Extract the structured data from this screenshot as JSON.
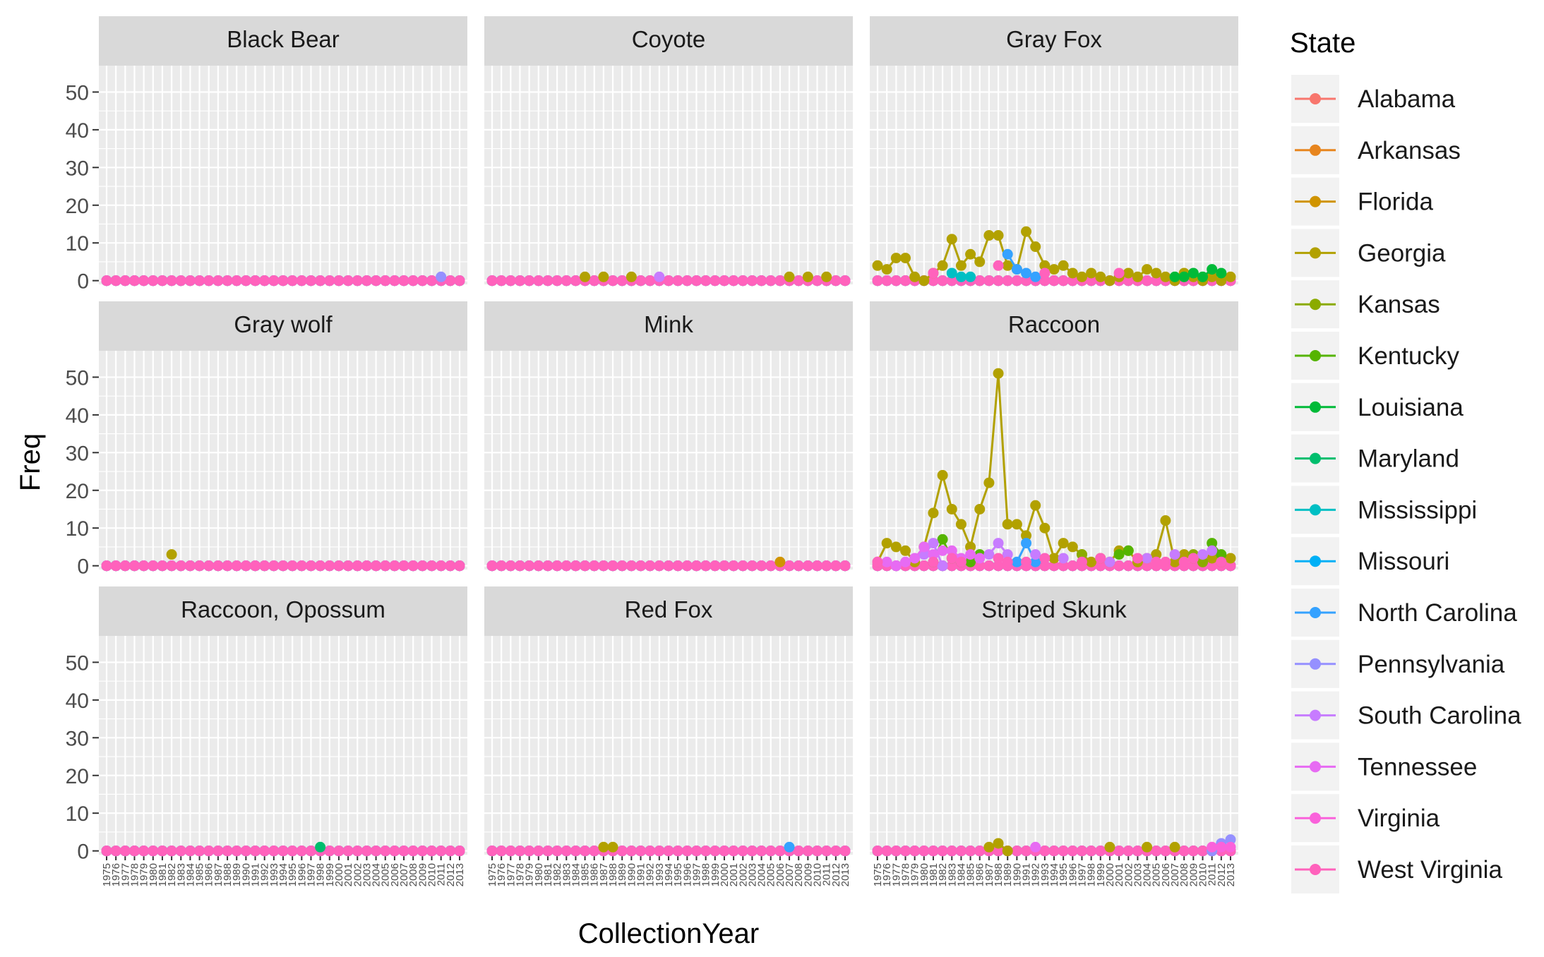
{
  "chart_data": {
    "type": "line",
    "facet_by": "species",
    "x_title": "CollectionYear",
    "y_title": "Freq",
    "legend_title": "State",
    "legend_position": "right",
    "grid": true,
    "ylim": [
      -1,
      57
    ],
    "y_ticks": [
      0,
      10,
      20,
      30,
      40,
      50
    ],
    "years": [
      1975,
      1976,
      1977,
      1978,
      1979,
      1980,
      1981,
      1982,
      1983,
      1984,
      1985,
      1986,
      1987,
      1988,
      1989,
      1990,
      1991,
      1992,
      1993,
      1994,
      1995,
      1996,
      1997,
      1998,
      1999,
      2000,
      2001,
      2002,
      2003,
      2004,
      2005,
      2006,
      2007,
      2008,
      2009,
      2010,
      2011,
      2012,
      2013
    ],
    "states": [
      {
        "name": "Alabama",
        "color": "#F8766D"
      },
      {
        "name": "Arkansas",
        "color": "#E7851E"
      },
      {
        "name": "Florida",
        "color": "#D09400"
      },
      {
        "name": "Georgia",
        "color": "#B2A100"
      },
      {
        "name": "Kansas",
        "color": "#8BAB00"
      },
      {
        "name": "Kentucky",
        "color": "#55B400"
      },
      {
        "name": "Louisiana",
        "color": "#00BA38"
      },
      {
        "name": "Maryland",
        "color": "#00BE6D"
      },
      {
        "name": "Mississippi",
        "color": "#00BFC4"
      },
      {
        "name": "Missouri",
        "color": "#00B0F6"
      },
      {
        "name": "North Carolina",
        "color": "#35A2FF"
      },
      {
        "name": "Pennsylvania",
        "color": "#9590FF"
      },
      {
        "name": "South Carolina",
        "color": "#C77CFF"
      },
      {
        "name": "Tennessee",
        "color": "#E76BF3"
      },
      {
        "name": "Virginia",
        "color": "#FA62DB"
      },
      {
        "name": "West Virginia",
        "color": "#FF62BC"
      }
    ],
    "panels": [
      {
        "species": "Black Bear",
        "series": [
          {
            "state": "Pennsylvania",
            "points": [
              [
                2011,
                1
              ]
            ]
          }
        ]
      },
      {
        "species": "Coyote",
        "series": [
          {
            "state": "Georgia",
            "points": [
              [
                1985,
                1
              ],
              [
                1987,
                1
              ],
              [
                1990,
                1
              ],
              [
                2007,
                1
              ],
              [
                2009,
                1
              ],
              [
                2011,
                1
              ]
            ]
          },
          {
            "state": "South Carolina",
            "points": [
              [
                1993,
                1
              ]
            ]
          }
        ]
      },
      {
        "species": "Gray Fox",
        "series": [
          {
            "state": "Georgia",
            "points": [
              [
                1975,
                4
              ],
              [
                1976,
                3
              ],
              [
                1977,
                6
              ],
              [
                1978,
                6
              ],
              [
                1979,
                1
              ],
              [
                1980,
                0
              ],
              [
                1981,
                2
              ],
              [
                1982,
                4
              ],
              [
                1983,
                11
              ],
              [
                1984,
                4
              ],
              [
                1985,
                7
              ],
              [
                1986,
                5
              ],
              [
                1987,
                12
              ],
              [
                1988,
                12
              ],
              [
                1989,
                4
              ],
              [
                1990,
                3
              ],
              [
                1991,
                13
              ],
              [
                1992,
                9
              ],
              [
                1993,
                4
              ],
              [
                1994,
                3
              ],
              [
                1995,
                4
              ],
              [
                1996,
                2
              ],
              [
                1997,
                1
              ],
              [
                1998,
                2
              ],
              [
                1999,
                1
              ],
              [
                2000,
                0
              ],
              [
                2001,
                1
              ],
              [
                2002,
                2
              ],
              [
                2003,
                1
              ],
              [
                2004,
                3
              ],
              [
                2005,
                2
              ],
              [
                2006,
                1
              ],
              [
                2007,
                0
              ],
              [
                2008,
                2
              ],
              [
                2009,
                1
              ],
              [
                2010,
                0
              ],
              [
                2011,
                1
              ],
              [
                2012,
                0
              ],
              [
                2013,
                1
              ]
            ]
          },
          {
            "state": "Louisiana",
            "points": [
              [
                2007,
                1
              ],
              [
                2008,
                1
              ],
              [
                2009,
                2
              ],
              [
                2010,
                1
              ],
              [
                2011,
                3
              ],
              [
                2012,
                2
              ]
            ]
          },
          {
            "state": "North Carolina",
            "points": [
              [
                1989,
                7
              ],
              [
                1990,
                3
              ],
              [
                1991,
                2
              ],
              [
                1992,
                1
              ]
            ]
          },
          {
            "state": "Mississippi",
            "points": [
              [
                1983,
                2
              ],
              [
                1984,
                1
              ],
              [
                1985,
                1
              ]
            ]
          },
          {
            "state": "West Virginia",
            "points": [
              [
                1981,
                2
              ],
              [
                1988,
                4
              ],
              [
                1993,
                2
              ],
              [
                2001,
                2
              ]
            ]
          }
        ]
      },
      {
        "species": "Gray wolf",
        "series": [
          {
            "state": "Georgia",
            "points": [
              [
                1982,
                3
              ]
            ]
          }
        ]
      },
      {
        "species": "Mink",
        "series": [
          {
            "state": "Florida",
            "points": [
              [
                2006,
                1
              ]
            ]
          }
        ]
      },
      {
        "species": "Raccoon",
        "series": [
          {
            "state": "Georgia",
            "points": [
              [
                1975,
                1
              ],
              [
                1976,
                6
              ],
              [
                1977,
                5
              ],
              [
                1978,
                4
              ],
              [
                1979,
                1
              ],
              [
                1980,
                5
              ],
              [
                1981,
                14
              ],
              [
                1982,
                24
              ],
              [
                1983,
                15
              ],
              [
                1984,
                11
              ],
              [
                1985,
                5
              ],
              [
                1986,
                15
              ],
              [
                1987,
                22
              ],
              [
                1988,
                51
              ],
              [
                1989,
                11
              ],
              [
                1990,
                11
              ],
              [
                1991,
                8
              ],
              [
                1992,
                16
              ],
              [
                1993,
                10
              ],
              [
                1994,
                2
              ],
              [
                1995,
                6
              ],
              [
                1996,
                5
              ],
              [
                1997,
                3
              ],
              [
                1998,
                1
              ],
              [
                1999,
                2
              ],
              [
                2000,
                1
              ],
              [
                2001,
                4
              ],
              [
                2002,
                4
              ],
              [
                2003,
                1
              ],
              [
                2004,
                2
              ],
              [
                2005,
                3
              ],
              [
                2006,
                12
              ],
              [
                2007,
                1
              ],
              [
                2008,
                3
              ],
              [
                2009,
                2
              ],
              [
                2010,
                1
              ],
              [
                2011,
                2
              ],
              [
                2012,
                1
              ],
              [
                2013,
                2
              ]
            ]
          },
          {
            "state": "Kentucky",
            "points": [
              [
                1981,
                1
              ],
              [
                1982,
                7
              ],
              [
                1983,
                2
              ],
              [
                1984,
                1
              ],
              [
                1985,
                1
              ],
              [
                1986,
                3
              ],
              [
                2001,
                3
              ],
              [
                2002,
                4
              ],
              [
                2011,
                6
              ],
              [
                2012,
                3
              ]
            ]
          },
          {
            "state": "North Carolina",
            "points": [
              [
                1990,
                1
              ],
              [
                1991,
                6
              ],
              [
                1992,
                1
              ]
            ]
          },
          {
            "state": "Kansas",
            "points": [
              [
                1997,
                3
              ],
              [
                2009,
                3
              ],
              [
                2010,
                1
              ]
            ]
          },
          {
            "state": "South Carolina",
            "points": [
              [
                1980,
                3
              ],
              [
                1981,
                6
              ],
              [
                1982,
                0
              ],
              [
                1987,
                3
              ],
              [
                1988,
                6
              ],
              [
                1989,
                3
              ],
              [
                1992,
                3
              ],
              [
                1995,
                2
              ],
              [
                2000,
                1
              ],
              [
                2004,
                2
              ],
              [
                2007,
                3
              ],
              [
                2010,
                3
              ],
              [
                2011,
                4
              ]
            ]
          },
          {
            "state": "Tennessee",
            "points": [
              [
                1975,
                1
              ],
              [
                1976,
                1
              ],
              [
                1977,
                0
              ],
              [
                1978,
                1
              ],
              [
                1979,
                2
              ],
              [
                1980,
                5
              ],
              [
                1981,
                3
              ],
              [
                1982,
                4
              ],
              [
                1983,
                4
              ],
              [
                1984,
                2
              ],
              [
                1985,
                3
              ],
              [
                1986,
                2
              ]
            ]
          },
          {
            "state": "West Virginia",
            "points": [
              [
                1975,
                1
              ],
              [
                1981,
                1
              ],
              [
                1983,
                2
              ],
              [
                1984,
                1
              ],
              [
                1988,
                2
              ],
              [
                1989,
                1
              ],
              [
                1991,
                1
              ],
              [
                1993,
                2
              ],
              [
                1997,
                1
              ],
              [
                1999,
                2
              ],
              [
                2003,
                2
              ],
              [
                2005,
                1
              ],
              [
                2006,
                1
              ],
              [
                2008,
                1
              ],
              [
                2009,
                2
              ],
              [
                2012,
                1
              ]
            ]
          }
        ]
      },
      {
        "species": "Raccoon, Opossum",
        "series": [
          {
            "state": "Maryland",
            "points": [
              [
                1998,
                1
              ]
            ]
          }
        ]
      },
      {
        "species": "Red Fox",
        "series": [
          {
            "state": "Georgia",
            "points": [
              [
                1987,
                1
              ],
              [
                1988,
                1
              ]
            ]
          },
          {
            "state": "North Carolina",
            "points": [
              [
                2007,
                1
              ]
            ]
          }
        ]
      },
      {
        "species": "Striped Skunk",
        "series": [
          {
            "state": "Georgia",
            "points": [
              [
                1987,
                1
              ],
              [
                1988,
                2
              ],
              [
                1989,
                0
              ],
              [
                2000,
                1
              ],
              [
                2004,
                1
              ],
              [
                2007,
                1
              ]
            ]
          },
          {
            "state": "Tennessee",
            "points": [
              [
                1992,
                1
              ]
            ]
          },
          {
            "state": "Pennsylvania",
            "points": [
              [
                2011,
                0
              ],
              [
                2012,
                2
              ],
              [
                2013,
                3
              ]
            ]
          },
          {
            "state": "Virginia",
            "points": [
              [
                2011,
                1
              ],
              [
                2012,
                1
              ],
              [
                2013,
                1
              ]
            ]
          }
        ]
      }
    ]
  }
}
